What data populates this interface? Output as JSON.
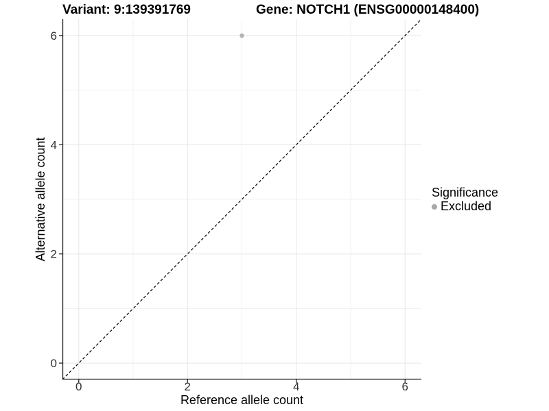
{
  "figure": {
    "background": "#ffffff"
  },
  "chart_data": {
    "type": "scatter",
    "title_left": "Variant: 9:139391769",
    "title_right": "Gene: NOTCH1 (ENSG00000148400)",
    "xlabel": "Reference allele count",
    "ylabel": "Alternative allele count",
    "xlim": [
      -0.3,
      6.3
    ],
    "ylim": [
      -0.3,
      6.3
    ],
    "x_ticks": [
      0,
      2,
      4,
      6
    ],
    "y_ticks": [
      0,
      2,
      4,
      6
    ],
    "x_minor_gridlines": [
      1,
      3,
      5
    ],
    "y_minor_gridlines": [
      1,
      3,
      5
    ],
    "grid": "major and minor gridlines, white background",
    "points": [
      {
        "x": 3,
        "y": 6,
        "series": "Excluded"
      }
    ],
    "reference_line": {
      "type": "identity",
      "slope": 1,
      "intercept": 0,
      "style": "dashed",
      "color": "#000000"
    },
    "legend": {
      "title": "Significance",
      "position": "right",
      "items": [
        {
          "label": "Excluded",
          "color": "#a8a8a8"
        }
      ]
    },
    "colors": {
      "point": "#b3b3b3",
      "grid_major": "#e6e6e6",
      "grid_minor": "#f1f1f1",
      "axis_line": "#1a1a1a",
      "tick_label": "#303030"
    }
  }
}
